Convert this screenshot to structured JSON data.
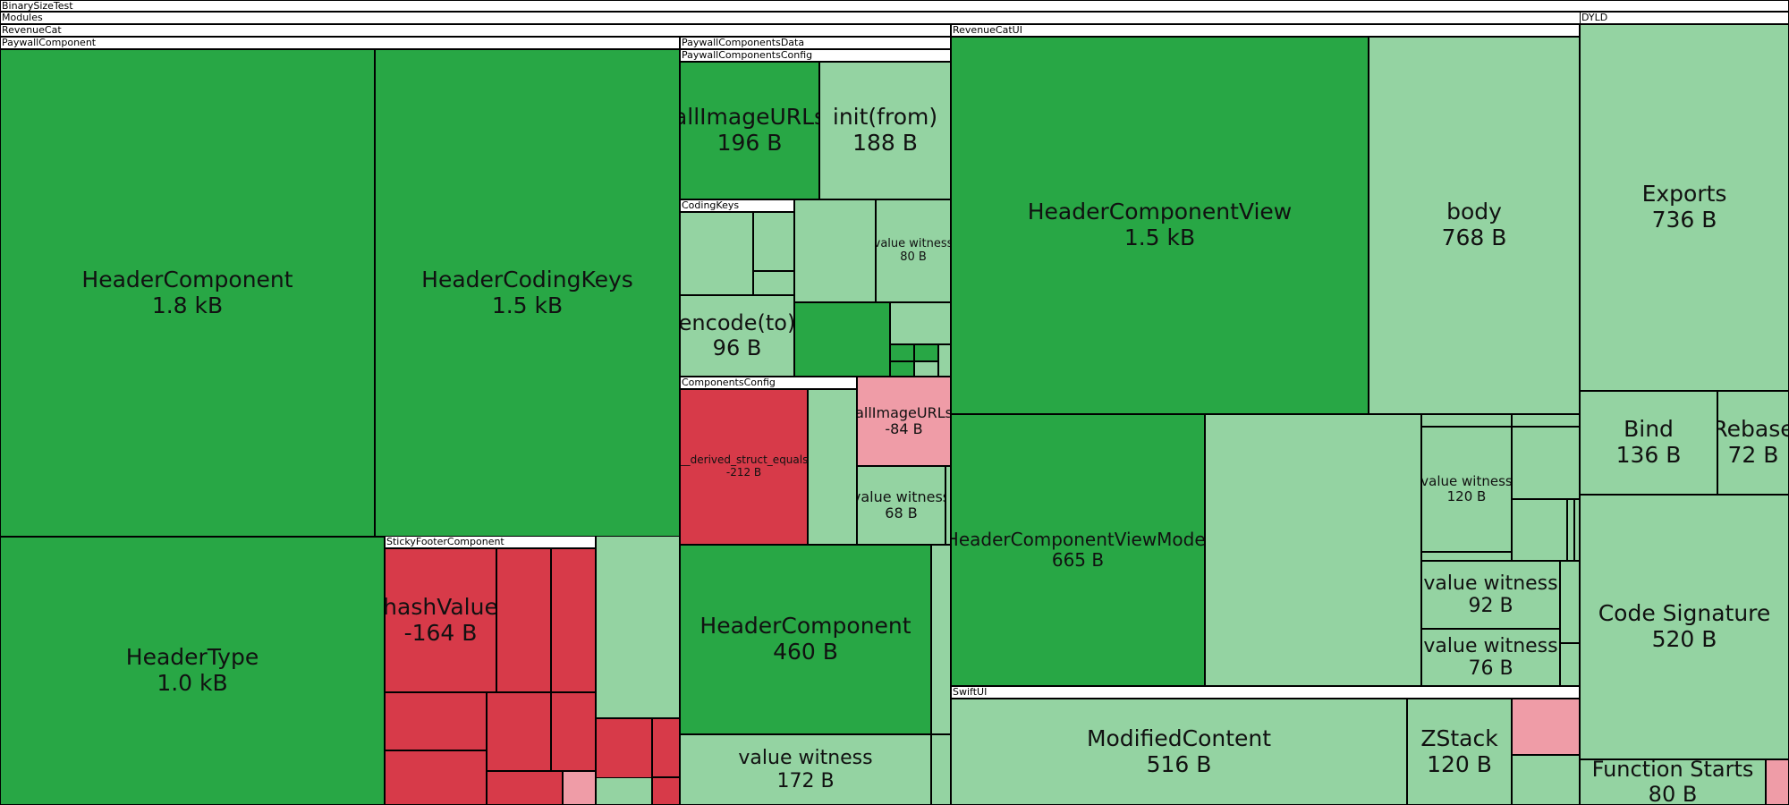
{
  "colors": {
    "growth_strong": "#28a745",
    "growth_light": "#94d3a2",
    "shrink_strong": "#d73a49",
    "shrink_light": "#ef9ca7",
    "border": "#000000",
    "header_bg": "#ffffff"
  },
  "chart_data": {
    "type": "treemap",
    "groups": [
      {
        "name": "BinarySizeTest"
      },
      {
        "name": "Modules"
      },
      {
        "name": "RevenueCat"
      },
      {
        "name": "PaywallComponent"
      },
      {
        "name": "PaywallComponentsData"
      },
      {
        "name": "PaywallComponentsConfig"
      },
      {
        "name": "CodingKeys"
      },
      {
        "name": "ComponentsConfig"
      },
      {
        "name": "StickyFooterComponent"
      },
      {
        "name": "RevenueCatUI"
      },
      {
        "name": "SwiftUI"
      },
      {
        "name": "DYLD"
      }
    ],
    "nodes": [
      {
        "label": "HeaderComponent",
        "value": "1.8 kB"
      },
      {
        "label": "HeaderCodingKeys",
        "value": "1.5 kB"
      },
      {
        "label": "HeaderType",
        "value": "1.0 kB"
      },
      {
        "label": "allImageURLs",
        "value": "196 B"
      },
      {
        "label": "init(from)",
        "value": "188 B"
      },
      {
        "label": "value witness",
        "value": "80 B"
      },
      {
        "label": "encode(to)",
        "value": "96 B"
      },
      {
        "label": "__derived_struct_equals",
        "value": "-212 B"
      },
      {
        "label": "allImageURLs",
        "value": "-84 B"
      },
      {
        "label": "value witness",
        "value": "68 B"
      },
      {
        "label": "hashValue",
        "value": "-164 B"
      },
      {
        "label": "HeaderComponent",
        "value": "460 B"
      },
      {
        "label": "value witness",
        "value": "172 B"
      },
      {
        "label": "HeaderComponentView",
        "value": "1.5 kB"
      },
      {
        "label": "body",
        "value": "768 B"
      },
      {
        "label": "HeaderComponentViewModel",
        "value": "665 B"
      },
      {
        "label": "value witness",
        "value": "120 B"
      },
      {
        "label": "value witness",
        "value": "92 B"
      },
      {
        "label": "value witness",
        "value": "76 B"
      },
      {
        "label": "ModifiedContent",
        "value": "516 B"
      },
      {
        "label": "ZStack",
        "value": "120 B"
      },
      {
        "label": "Exports",
        "value": "736 B"
      },
      {
        "label": "Bind",
        "value": "136 B"
      },
      {
        "label": "Rebase",
        "value": "72 B"
      },
      {
        "label": "Code Signature",
        "value": "520 B"
      },
      {
        "label": "Function Starts",
        "value": "80 B"
      }
    ]
  }
}
